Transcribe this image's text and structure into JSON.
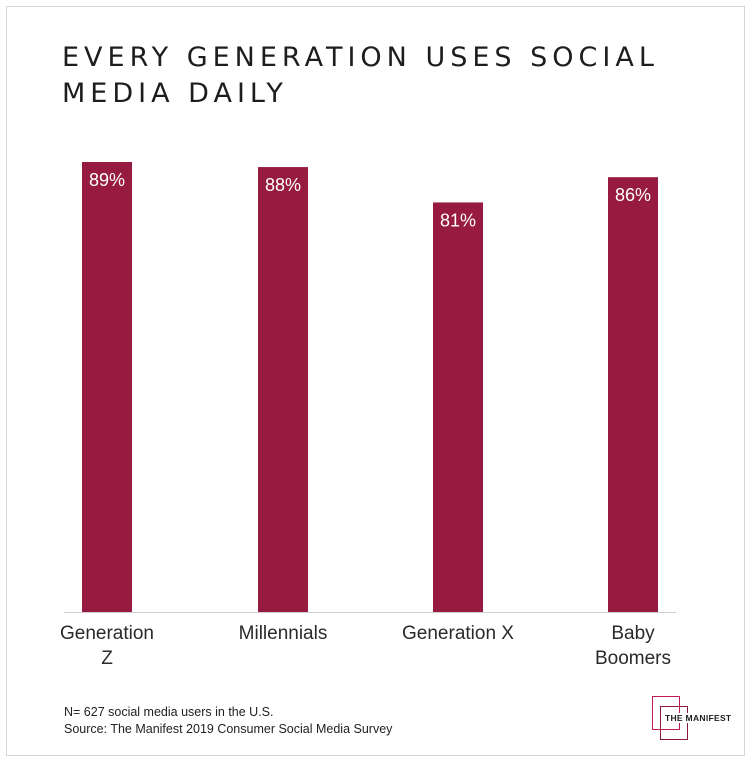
{
  "title": "EVERY GENERATION USES SOCIAL MEDIA DAILY",
  "colors": {
    "bar": "#971b40",
    "baseline": "#cfcfcf",
    "text": "#1d1d1d",
    "logo_accent": "#c2185b"
  },
  "chart_data": {
    "type": "bar",
    "title": "EVERY GENERATION USES SOCIAL MEDIA DAILY",
    "categories": [
      [
        "Generation",
        "Z"
      ],
      [
        "Millennials"
      ],
      [
        "Generation X"
      ],
      [
        "Baby",
        "Boomers"
      ]
    ],
    "values": [
      89,
      88,
      81,
      86
    ],
    "value_labels": [
      "89%",
      "88%",
      "81%",
      "86%"
    ],
    "unit": "%",
    "ylim": [
      0,
      89
    ],
    "xlabel": "",
    "ylabel": "",
    "grid": false,
    "legend": "none"
  },
  "footnote": {
    "sample": "N= 627 social media users in the U.S.",
    "source": "Source: The Manifest 2019 Consumer Social Media Survey"
  },
  "logo": {
    "text": "THE MANIFEST"
  }
}
